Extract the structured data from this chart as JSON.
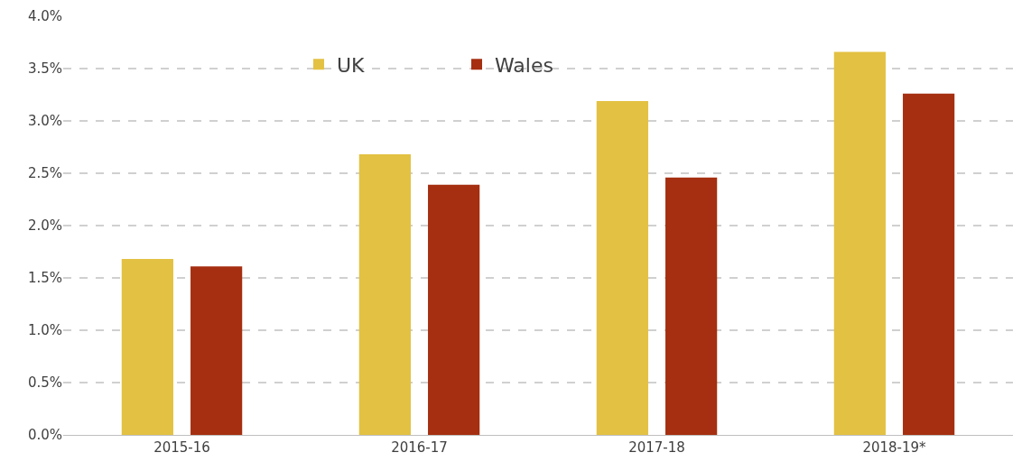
{
  "chart_data": {
    "type": "bar",
    "categories": [
      "2015-16",
      "2016-17",
      "2017-18",
      "2018-19*"
    ],
    "series": [
      {
        "name": "UK",
        "color": "#e3c142",
        "values": [
          1.68,
          2.68,
          3.19,
          3.66
        ]
      },
      {
        "name": "Wales",
        "color": "#a52f10",
        "values": [
          1.61,
          2.39,
          2.46,
          3.26
        ]
      }
    ],
    "ylim": [
      0,
      4
    ],
    "yticks": [
      {
        "value": 0,
        "label": "0.0%"
      },
      {
        "value": 0.5,
        "label": "0.5%"
      },
      {
        "value": 1,
        "label": "1.0%"
      },
      {
        "value": 1.5,
        "label": "1.5%"
      },
      {
        "value": 2,
        "label": "2.0%"
      },
      {
        "value": 2.5,
        "label": "2.5%"
      },
      {
        "value": 3,
        "label": "3.0%"
      },
      {
        "value": 3.5,
        "label": "3.5%"
      },
      {
        "value": 4,
        "label": "4.0%"
      }
    ],
    "grid": "y",
    "legend": "top left"
  }
}
